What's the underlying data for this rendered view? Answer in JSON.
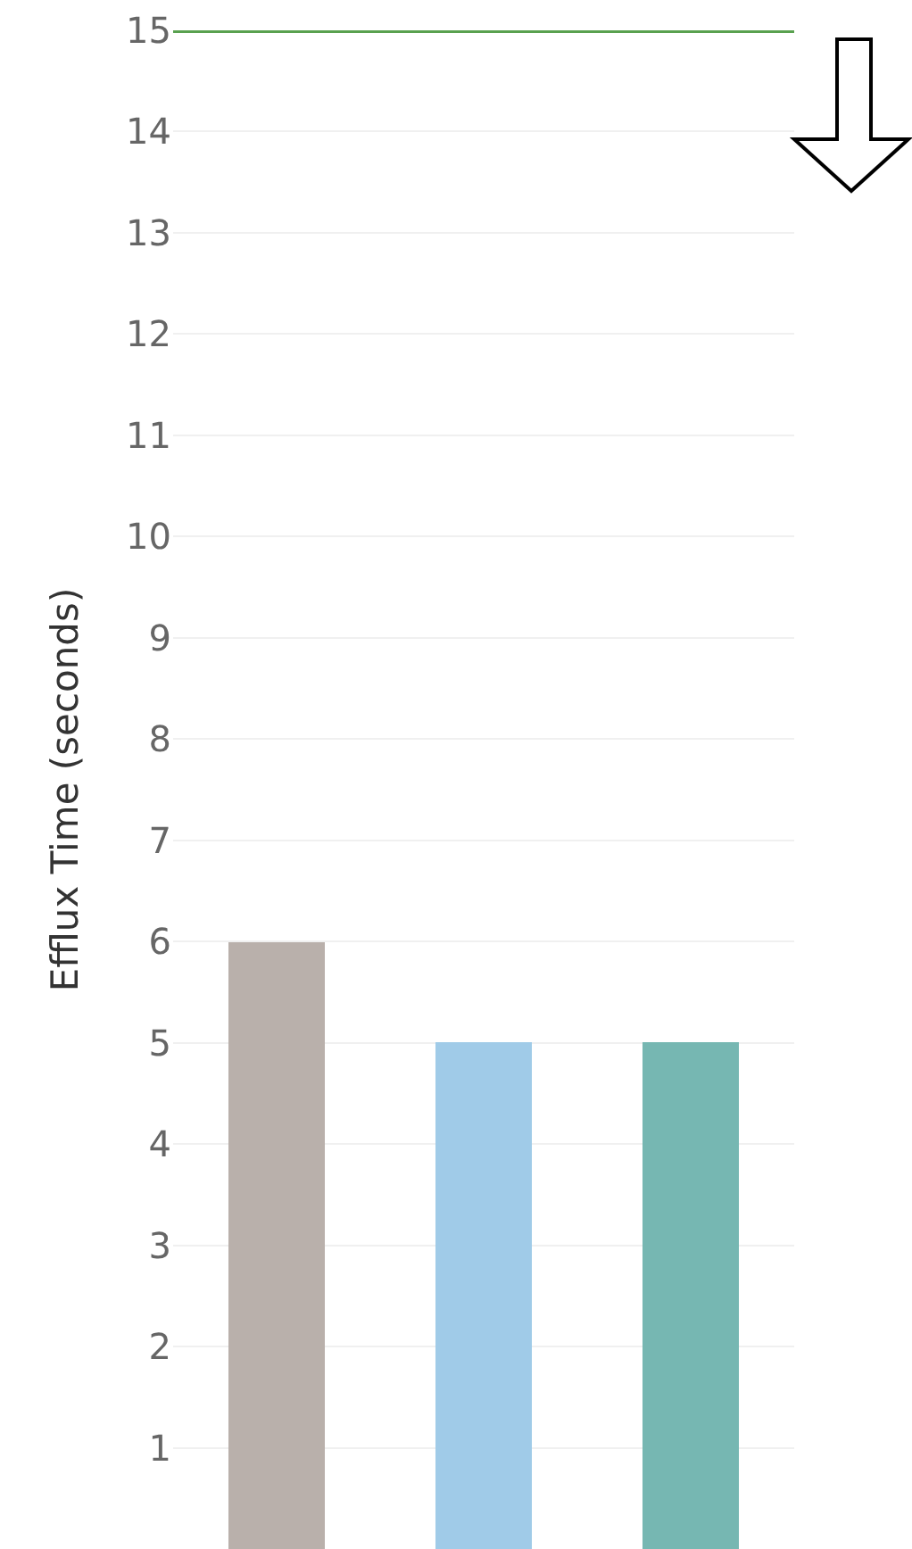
{
  "chart_data": {
    "type": "bar",
    "ylabel": "Efflux Time (seconds)",
    "categories": [
      null,
      null,
      null
    ],
    "values": [
      6,
      5,
      5
    ],
    "colors": [
      "#b9b0ab",
      "#a0cbe8",
      "#76b7b2"
    ],
    "ylim": [
      0,
      15
    ],
    "yticks": [
      {
        "value": 0,
        "label": null
      },
      1,
      2,
      3,
      4,
      5,
      6,
      7,
      8,
      9,
      10,
      11,
      12,
      13,
      14,
      15
    ],
    "grid": "y",
    "tick_labels": "y",
    "ref_lines": [
      {
        "axis": "y",
        "value": 15,
        "color": "#59a14f",
        "line_style": "solid"
      }
    ]
  }
}
